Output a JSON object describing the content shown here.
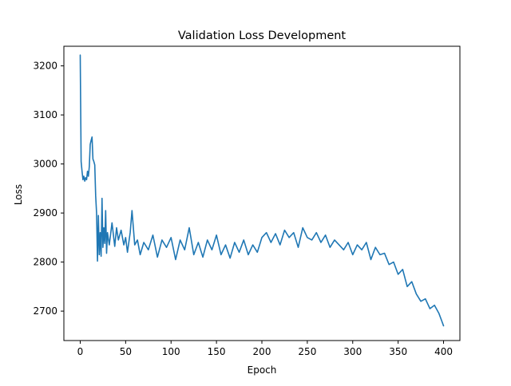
{
  "chart_data": {
    "type": "line",
    "title": "Validation Loss Development",
    "xlabel": "Epoch",
    "ylabel": "Loss",
    "xlim": [
      -18,
      418
    ],
    "ylim": [
      2640,
      3240
    ],
    "xticks": [
      0,
      50,
      100,
      150,
      200,
      250,
      300,
      350,
      400
    ],
    "yticks": [
      2700,
      2800,
      2900,
      3000,
      3100,
      3200
    ],
    "grid": false,
    "legend": "none",
    "series": [
      {
        "color": "#1f77b4",
        "x": [
          0,
          1,
          2,
          3,
          4,
          5,
          6,
          7,
          8,
          9,
          10,
          11,
          12,
          13,
          14,
          15,
          16,
          17,
          18,
          19,
          20,
          21,
          22,
          23,
          24,
          25,
          26,
          27,
          28,
          29,
          30,
          32,
          35,
          38,
          40,
          42,
          45,
          48,
          50,
          52,
          55,
          57,
          60,
          63,
          66,
          70,
          75,
          80,
          85,
          90,
          95,
          100,
          105,
          110,
          115,
          120,
          125,
          130,
          135,
          140,
          145,
          150,
          155,
          160,
          165,
          170,
          175,
          180,
          185,
          190,
          195,
          200,
          205,
          210,
          215,
          220,
          225,
          230,
          235,
          240,
          245,
          250,
          255,
          260,
          265,
          270,
          275,
          280,
          285,
          290,
          295,
          300,
          305,
          310,
          315,
          320,
          325,
          330,
          335,
          340,
          345,
          350,
          355,
          360,
          365,
          370,
          375,
          380,
          385,
          390,
          395,
          398,
          400
        ],
        "y": [
          3222,
          3005,
          2985,
          2968,
          2975,
          2965,
          2972,
          2968,
          2985,
          2975,
          2995,
          3040,
          3048,
          3055,
          3010,
          3005,
          2998,
          2935,
          2900,
          2802,
          2895,
          2815,
          2860,
          2812,
          2930,
          2830,
          2870,
          2838,
          2905,
          2818,
          2860,
          2835,
          2880,
          2832,
          2870,
          2845,
          2865,
          2835,
          2850,
          2820,
          2860,
          2905,
          2835,
          2845,
          2815,
          2840,
          2825,
          2855,
          2810,
          2845,
          2830,
          2850,
          2805,
          2845,
          2825,
          2870,
          2815,
          2840,
          2810,
          2845,
          2825,
          2855,
          2815,
          2835,
          2808,
          2840,
          2820,
          2845,
          2815,
          2835,
          2820,
          2850,
          2860,
          2840,
          2858,
          2835,
          2865,
          2850,
          2860,
          2830,
          2870,
          2850,
          2845,
          2860,
          2840,
          2855,
          2830,
          2845,
          2835,
          2825,
          2840,
          2815,
          2835,
          2825,
          2840,
          2805,
          2830,
          2815,
          2818,
          2795,
          2800,
          2775,
          2785,
          2750,
          2760,
          2735,
          2720,
          2725,
          2705,
          2712,
          2695,
          2680,
          2670
        ]
      }
    ]
  }
}
